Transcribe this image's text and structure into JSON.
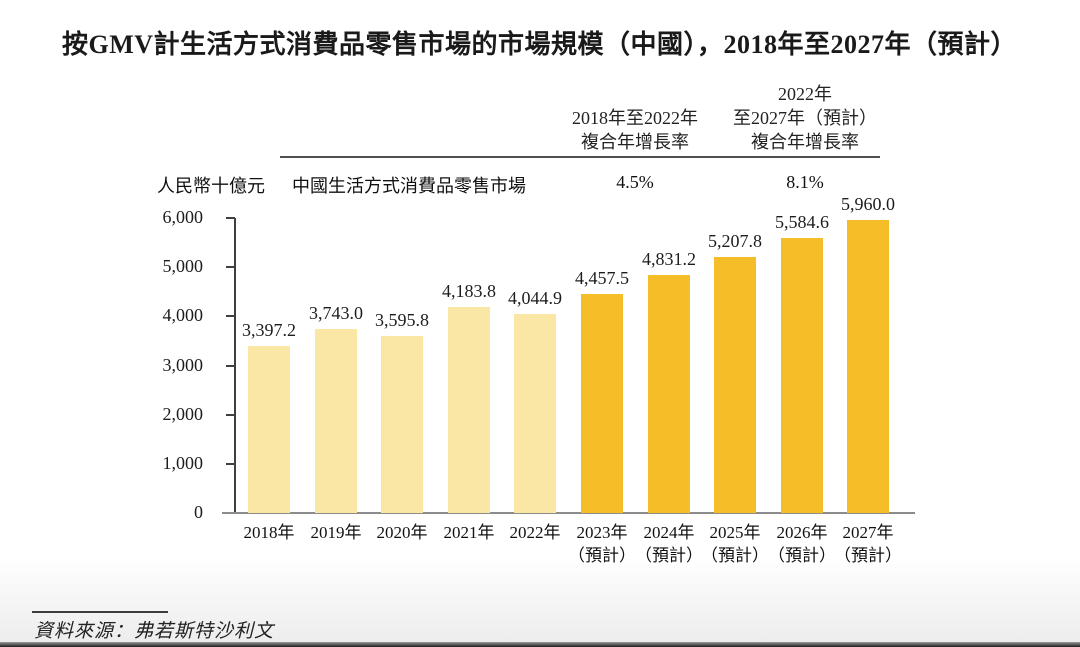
{
  "title": "按GMV計生活方式消費品零售市場的市場規模（中國），2018年至2027年（預計）",
  "cagr_header": {
    "columns": [
      {
        "lines": [
          "2018年至2022年",
          "複合年增長率"
        ],
        "value": "4.5%"
      },
      {
        "lines": [
          "2022年",
          "至2027年（預計）",
          "複合年增長率"
        ],
        "value": "8.1%"
      }
    ]
  },
  "unit_label": "人民幣十億元",
  "series_label": "中國生活方式消費品零售市場",
  "source": "資料來源：弗若斯特沙利文",
  "chart_data": {
    "type": "bar",
    "title": "按GMV計生活方式消費品零售市場的市場規模（中國），2018年至2027年（預計）",
    "ylabel": "人民幣十億元",
    "series_name": "中國生活方式消費品零售市場",
    "categories": [
      "2018年",
      "2019年",
      "2020年",
      "2021年",
      "2022年",
      "2023年（預計）",
      "2024年（預計）",
      "2025年（預計）",
      "2026年（預計）",
      "2027年（預計）"
    ],
    "x_tick_lines": [
      [
        "2018年"
      ],
      [
        "2019年"
      ],
      [
        "2020年"
      ],
      [
        "2021年"
      ],
      [
        "2022年"
      ],
      [
        "2023年",
        "（預計）"
      ],
      [
        "2024年",
        "（預計）"
      ],
      [
        "2025年",
        "（預計）"
      ],
      [
        "2026年",
        "（預計）"
      ],
      [
        "2027年",
        "（預計）"
      ]
    ],
    "values": [
      3397.2,
      3743.0,
      3595.8,
      4183.8,
      4044.9,
      4457.5,
      4831.2,
      5207.8,
      5584.6,
      5960.0
    ],
    "value_labels": [
      "3,397.2",
      "3,743.0",
      "3,595.8",
      "4,183.8",
      "4,044.9",
      "4,457.5",
      "4,831.2",
      "5,207.8",
      "5,584.6",
      "5,960.0"
    ],
    "forecast_from_index": 5,
    "cagr_2018_2022": "4.5%",
    "cagr_2022_2027_forecast": "8.1%",
    "y_ticks": [
      "0",
      "1,000",
      "2,000",
      "3,000",
      "4,000",
      "5,000",
      "6,000"
    ],
    "ylim": [
      0,
      6000
    ],
    "grid": false,
    "legend_position": "none",
    "colors": {
      "historical": "#FAE7A5",
      "forecast": "#F5BD27"
    }
  }
}
